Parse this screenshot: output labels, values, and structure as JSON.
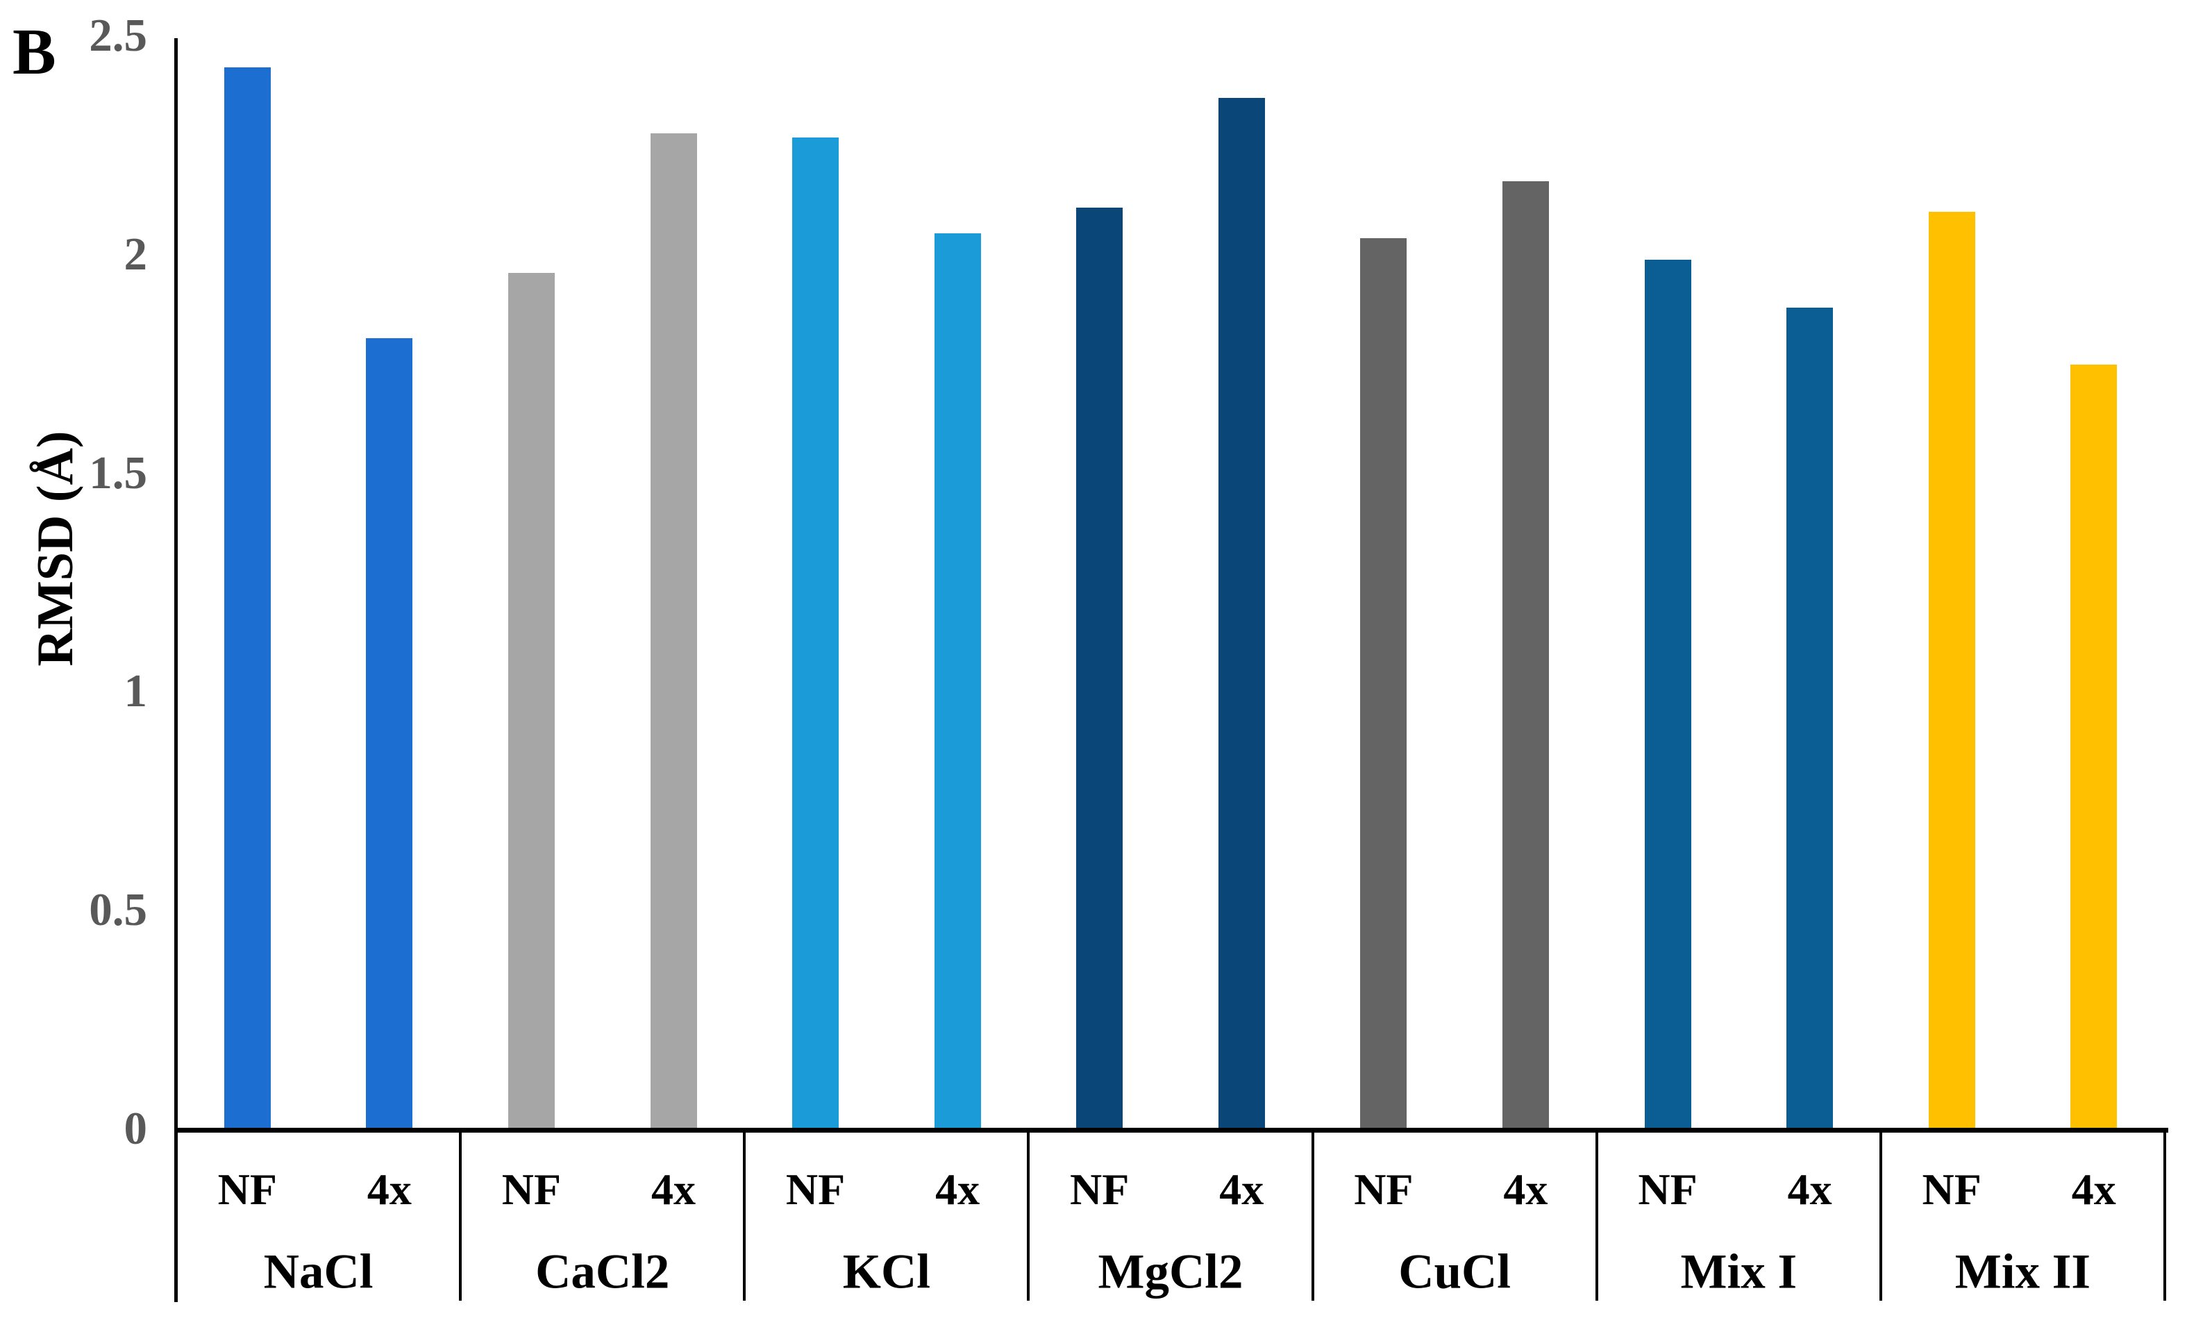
{
  "panel_label": "B",
  "chart_data": {
    "type": "bar",
    "title": "",
    "ylabel": "RMSD (Å)",
    "xlabel": "",
    "ylim": [
      0,
      2.5
    ],
    "yticks": [
      0,
      0.5,
      1,
      1.5,
      2,
      2.5
    ],
    "ytick_labels": [
      "0",
      "0.5",
      "1",
      "1.5",
      "2",
      "2.5"
    ],
    "categories": [
      "NaCl",
      "CaCl2",
      "KCl",
      "MgCl2",
      "CuCl",
      "Mix I",
      "Mix II"
    ],
    "series_labels": [
      "NF",
      "4x"
    ],
    "series": [
      {
        "name": "NF",
        "values": [
          2.43,
          1.96,
          2.27,
          2.11,
          2.04,
          1.99,
          2.1
        ]
      },
      {
        "name": "4x",
        "values": [
          1.81,
          2.28,
          2.05,
          2.36,
          2.17,
          1.88,
          1.75
        ]
      }
    ],
    "group_colors": [
      "#1C6FD1",
      "#A6A6A6",
      "#1B9BD8",
      "#0B4679",
      "#646464",
      "#0A5E94",
      "#FFC000"
    ],
    "axis_color": "#000000",
    "tick_label_color": "#595959",
    "grid": false,
    "legend": "none"
  }
}
